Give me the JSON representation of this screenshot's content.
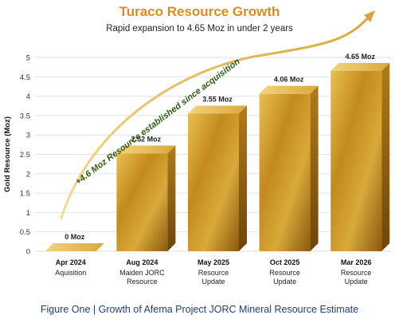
{
  "chart_data": {
    "type": "bar",
    "title": "Turaco Resource Growth",
    "subtitle": "Rapid expansion to 4.65 Moz in under 2 years",
    "ylabel": "Gold Resource (Moz)",
    "xlabel": "",
    "ylim": [
      0,
      5
    ],
    "yticks": [
      0,
      0.5,
      1,
      1.5,
      2,
      2.5,
      3,
      3.5,
      4,
      4.5,
      5
    ],
    "grid": true,
    "categories": [
      {
        "date": "Apr 2024",
        "desc": [
          "Aquisition"
        ]
      },
      {
        "date": "Aug 2024",
        "desc": [
          "Maiden JORC",
          "Resource"
        ]
      },
      {
        "date": "May 2025",
        "desc": [
          "Resource",
          "Update"
        ]
      },
      {
        "date": "Oct 2025",
        "desc": [
          "Resource",
          "Update"
        ]
      },
      {
        "date": "Mar 2026",
        "desc": [
          "Resource",
          "Update"
        ]
      }
    ],
    "values": [
      0,
      2.52,
      3.55,
      4.06,
      4.65
    ],
    "value_labels": [
      "0 Moz",
      "2.52 Moz",
      "3.55 Moz",
      "4.06 Moz",
      "4.65 Moz"
    ],
    "annotation": "+4.6 Moz Resource established since acquisition",
    "bar_color": "#c8961e",
    "arrow_color": "#e8c25a"
  },
  "caption": "Figure One | Growth of Afema Project JORC Mineral Resource Estimate"
}
